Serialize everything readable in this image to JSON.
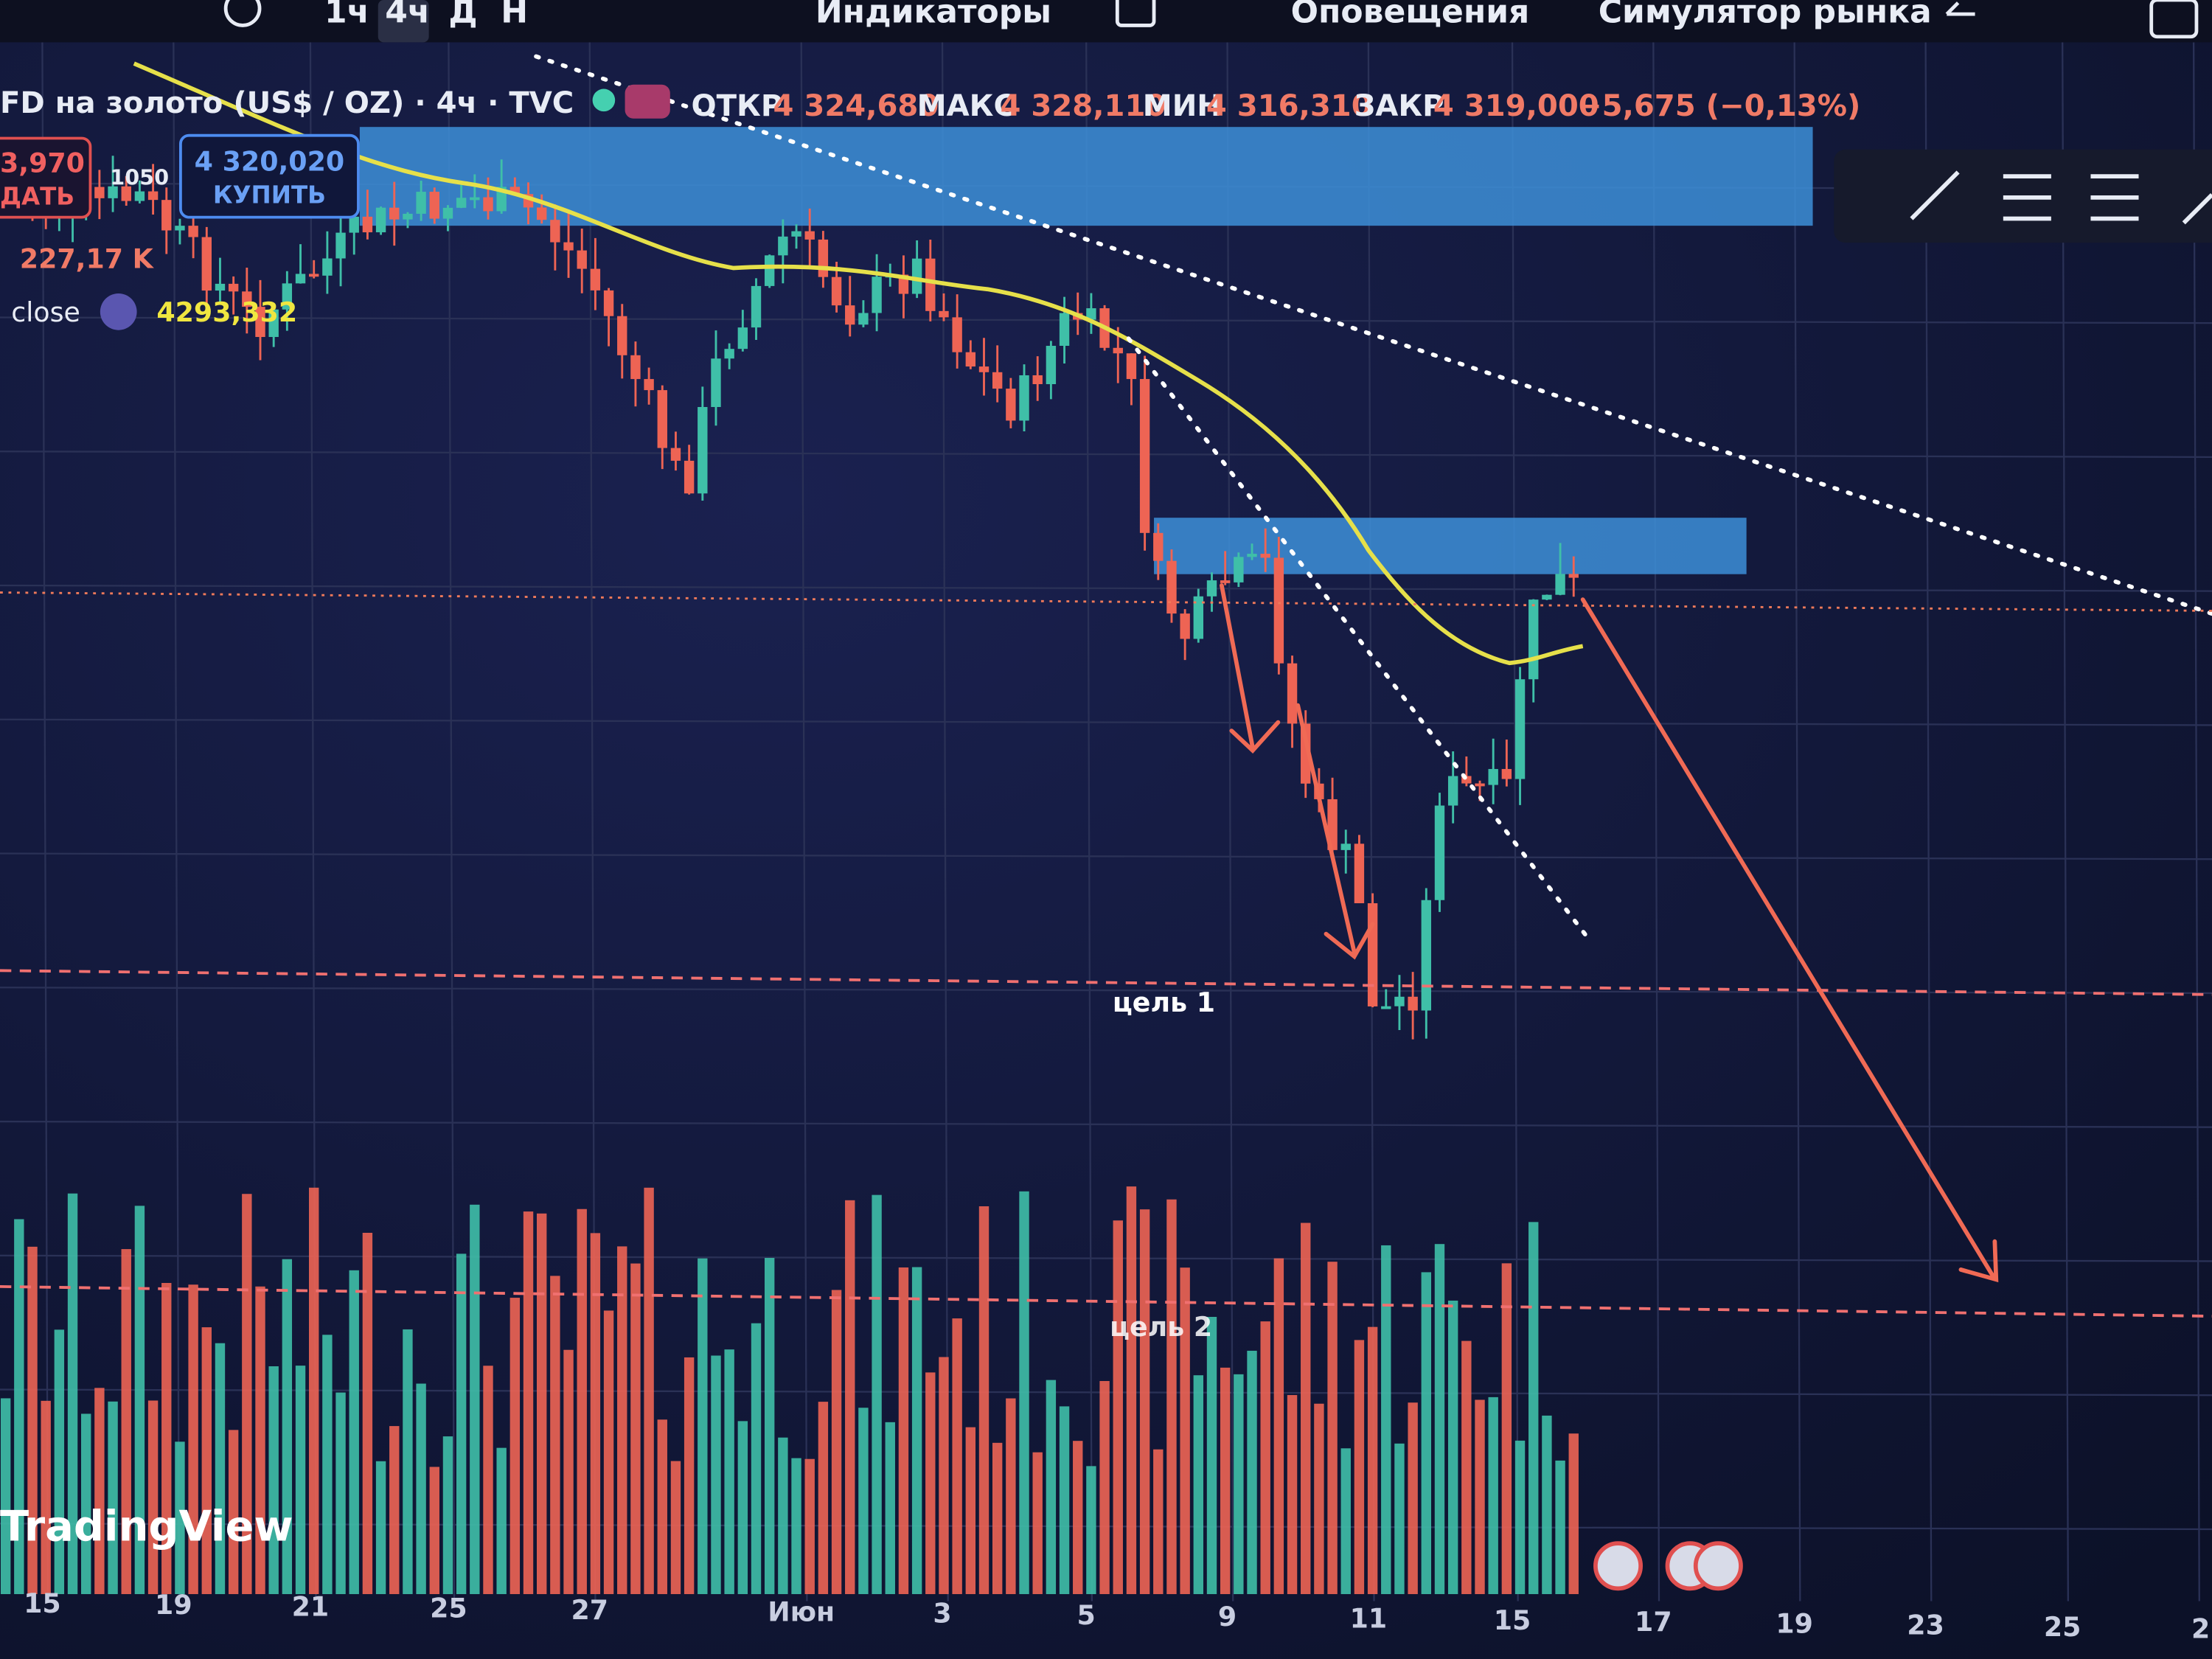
{
  "toolbar": {
    "intervals": [
      "1ч",
      "4ч",
      "Д",
      "Н"
    ],
    "indicators": "Индикаторы",
    "alerts": "Оповещения",
    "replay": "Симулятор рынка"
  },
  "legend": {
    "symbol": "FD на золото (US$ / OZ) · 4ч · TVC",
    "open_label": "ОТКР",
    "open": "4 324,680",
    "high_label": "МАКС",
    "high": "4 328,110",
    "low_label": "МИН",
    "low": "4 316,310",
    "close_label": "ЗАКР",
    "close": "4 319,000",
    "change": "−5,675 (−0,13%)"
  },
  "trade": {
    "sell_price": "3,970",
    "sell_label": "ДАТЬ",
    "spread": "1050",
    "buy_price": "4 320,020",
    "buy_label": "КУПИТЬ"
  },
  "indicators": {
    "volume": "227,17 K",
    "ma_label": "close",
    "ma_value": "4293,332"
  },
  "annotations": {
    "target1": "цель 1",
    "target2": "цель 2"
  },
  "logo": "TradingView",
  "x_axis": [
    "15",
    "19",
    "21",
    "25",
    "27",
    "Июн",
    "3",
    "5",
    "9",
    "11",
    "15",
    "17",
    "19",
    "23",
    "25",
    "2"
  ]
}
